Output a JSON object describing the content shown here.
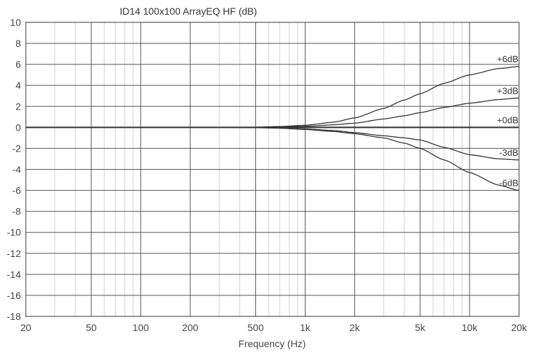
{
  "chart_data": {
    "type": "line",
    "title": "ID14 100x100 ArrayEQ HF (dB)",
    "xlabel": "Frequency (Hz)",
    "ylabel": "",
    "xscale": "log",
    "xlim": [
      20,
      20000
    ],
    "ylim": [
      -18,
      10
    ],
    "grid": true,
    "legend": "inline labels at right end of curves",
    "x_ticks": [
      {
        "value": 20,
        "label": "20"
      },
      {
        "value": 50,
        "label": "50"
      },
      {
        "value": 100,
        "label": "100"
      },
      {
        "value": 200,
        "label": "200"
      },
      {
        "value": 500,
        "label": "500"
      },
      {
        "value": 1000,
        "label": "1k"
      },
      {
        "value": 2000,
        "label": "2k"
      },
      {
        "value": 5000,
        "label": "5k"
      },
      {
        "value": 10000,
        "label": "10k"
      },
      {
        "value": 20000,
        "label": "20k"
      }
    ],
    "y_ticks": [
      10,
      8,
      6,
      4,
      2,
      0,
      -2,
      -4,
      -6,
      -8,
      -10,
      -12,
      -14,
      -16,
      -18
    ],
    "x": [
      20,
      100,
      300,
      500,
      700,
      1000,
      1500,
      2000,
      3000,
      4000,
      5000,
      7000,
      10000,
      15000,
      20000
    ],
    "series": [
      {
        "name": "+6dB",
        "values": [
          0,
          0,
          0,
          0.02,
          0.08,
          0.2,
          0.5,
          0.9,
          1.8,
          2.6,
          3.2,
          4.2,
          5.0,
          5.6,
          5.8
        ]
      },
      {
        "name": "+3dB",
        "values": [
          0,
          0,
          0,
          0.01,
          0.04,
          0.1,
          0.25,
          0.4,
          0.8,
          1.1,
          1.4,
          1.9,
          2.3,
          2.65,
          2.8
        ]
      },
      {
        "name": "+0dB",
        "values": [
          0,
          0,
          0,
          0,
          0,
          0,
          0,
          0,
          0,
          0,
          0,
          0,
          0,
          0,
          0
        ]
      },
      {
        "name": "-3dB",
        "values": [
          0,
          0,
          0,
          -0.02,
          -0.06,
          -0.15,
          -0.3,
          -0.5,
          -0.8,
          -1.0,
          -1.2,
          -1.9,
          -2.6,
          -3.0,
          -3.1
        ]
      },
      {
        "name": "-6dB",
        "values": [
          0,
          0,
          0,
          -0.03,
          -0.08,
          -0.2,
          -0.4,
          -0.6,
          -1.0,
          -1.5,
          -2.0,
          -3.1,
          -4.3,
          -5.5,
          -6.0
        ]
      }
    ]
  },
  "labels": {
    "title": "ID14 100x100 ArrayEQ HF (dB)",
    "xlabel": "Frequency (Hz)"
  },
  "style": {
    "major_grid_color": "#555555",
    "minor_grid_color": "#d8d8d8",
    "curve_color": "#333333",
    "zero_line_color": "#222222"
  }
}
